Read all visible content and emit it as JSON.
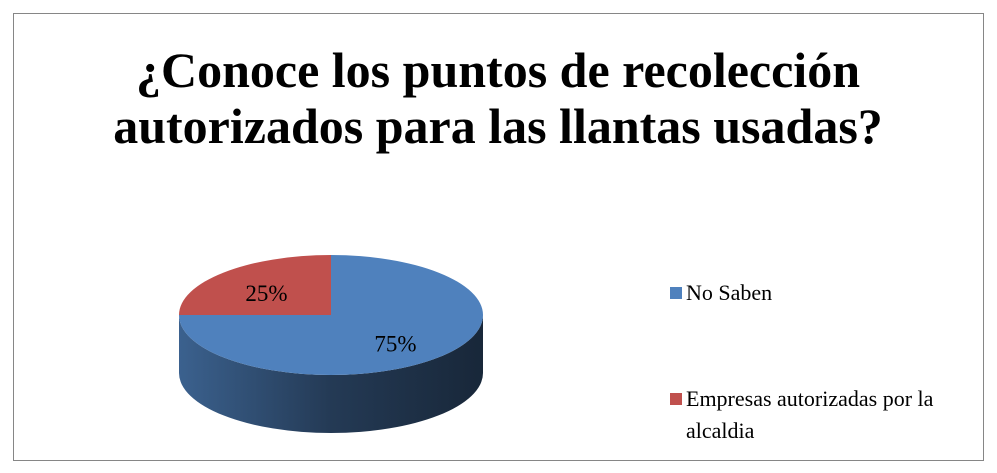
{
  "chart_data": {
    "type": "pie3d",
    "title": "¿Conoce los puntos de recolección autorizados para las llantas usadas?",
    "categories": [
      "No Saben",
      "Empresas autorizadas por la alcaldia"
    ],
    "values": [
      75,
      25
    ],
    "value_labels": [
      "75%",
      "25%"
    ],
    "colors": [
      "#4f81bd",
      "#c0504d"
    ],
    "legend": "right"
  }
}
